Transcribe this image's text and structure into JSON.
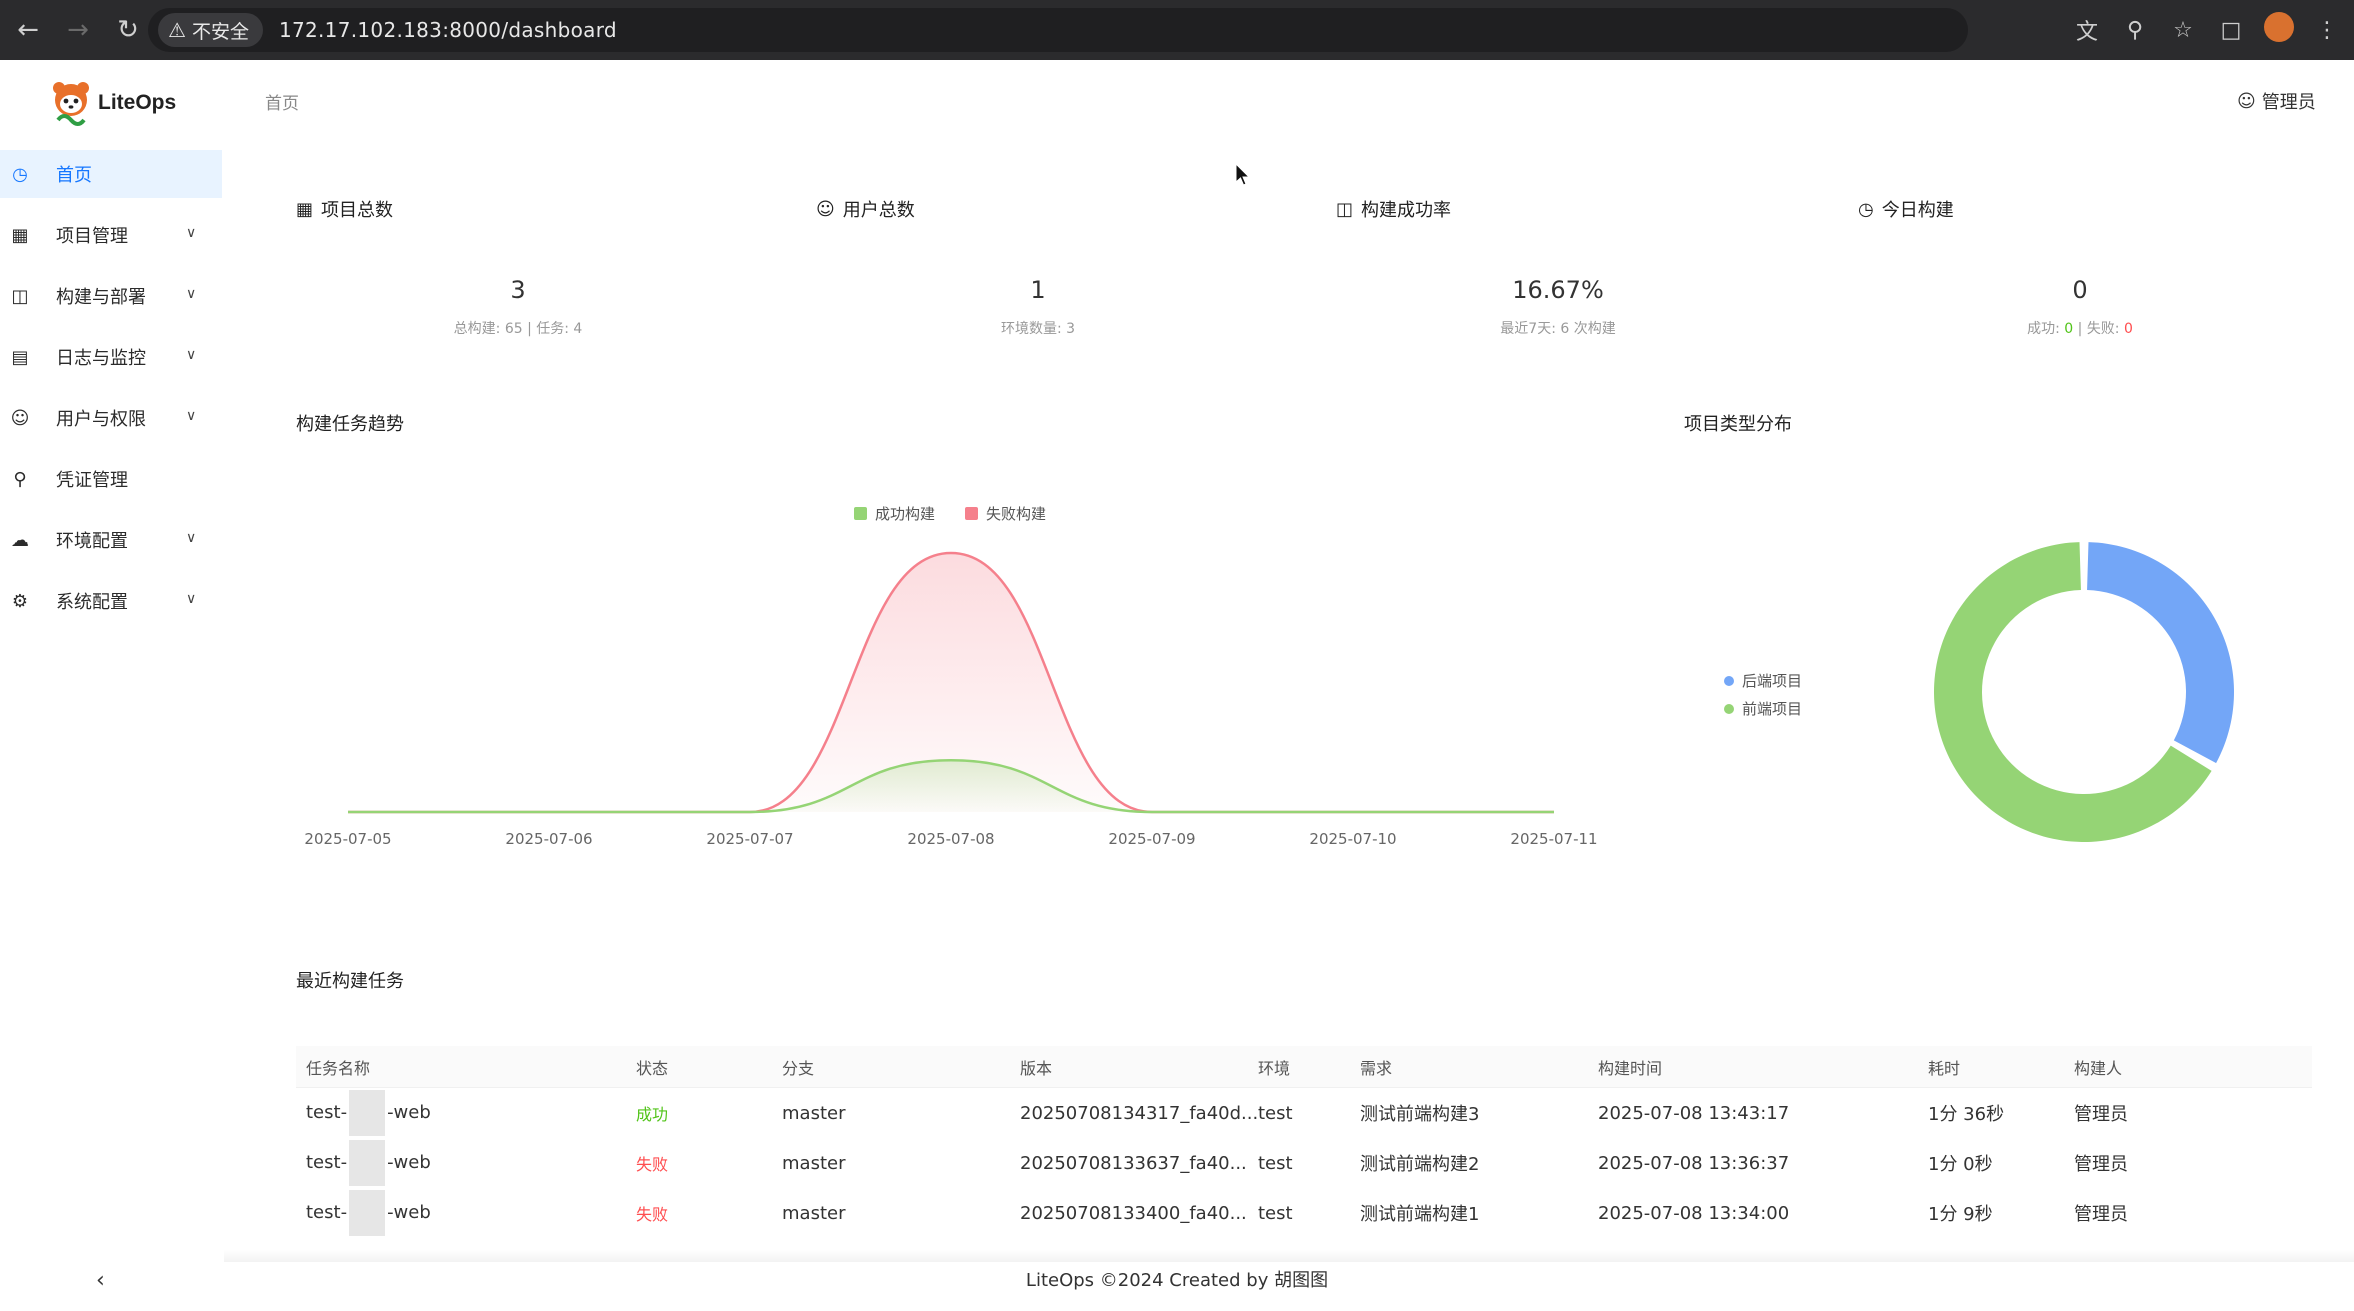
{
  "browser": {
    "security_label": "不安全",
    "url": "172.17.102.183:8000/dashboard"
  },
  "app": {
    "logo_text": "LiteOps"
  },
  "sidebar": {
    "items": [
      {
        "label": "首页",
        "icon": "dashboard-icon",
        "active": true,
        "expandable": false
      },
      {
        "label": "项目管理",
        "icon": "project-icon",
        "active": false,
        "expandable": true
      },
      {
        "label": "构建与部署",
        "icon": "build-icon",
        "active": false,
        "expandable": true
      },
      {
        "label": "日志与监控",
        "icon": "log-icon",
        "active": false,
        "expandable": true
      },
      {
        "label": "用户与权限",
        "icon": "user-icon",
        "active": false,
        "expandable": true
      },
      {
        "label": "凭证管理",
        "icon": "key-icon",
        "active": false,
        "expandable": false
      },
      {
        "label": "环境配置",
        "icon": "cloud-icon",
        "active": false,
        "expandable": true
      },
      {
        "label": "系统配置",
        "icon": "gear-icon",
        "active": false,
        "expandable": true
      }
    ]
  },
  "header": {
    "breadcrumb": "首页",
    "user": "管理员"
  },
  "stats": {
    "projects": {
      "label": "项目总数",
      "value": "3",
      "sub": "总构建: 65 | 任务: 4"
    },
    "users": {
      "label": "用户总数",
      "value": "1",
      "sub": "环境数量: 3"
    },
    "success_rate": {
      "label": "构建成功率",
      "value": "16.67%",
      "sub": "最近7天: 6 次构建"
    },
    "today": {
      "label": "今日构建",
      "value": "0",
      "sub_success_label": "成功:",
      "sub_success_value": "0",
      "sub_sep": "|",
      "sub_fail_label": "失败:",
      "sub_fail_value": "0"
    }
  },
  "trend": {
    "title": "构建任务趋势"
  },
  "distribution": {
    "title": "项目类型分布"
  },
  "chart_data": [
    {
      "type": "area",
      "title": "构建任务趋势",
      "categories": [
        "2025-07-05",
        "2025-07-06",
        "2025-07-07",
        "2025-07-08",
        "2025-07-09",
        "2025-07-10",
        "2025-07-11"
      ],
      "series": [
        {
          "name": "成功构建",
          "values": [
            0,
            0,
            0,
            1,
            0,
            0,
            0
          ],
          "color": "#95d475"
        },
        {
          "name": "失败构建",
          "values": [
            0,
            0,
            0,
            5,
            0,
            0,
            0
          ],
          "color": "#f5808c"
        }
      ],
      "ylim": [
        0,
        5
      ],
      "legend": "top-center",
      "grid": false
    },
    {
      "type": "pie",
      "title": "项目类型分布",
      "labels": [
        "后端项目",
        "前端项目"
      ],
      "values": [
        1,
        2
      ],
      "colors": [
        "#73a6f7",
        "#95d475"
      ],
      "donut": true,
      "legend": "left"
    }
  ],
  "recent": {
    "title": "最近构建任务",
    "columns": [
      "任务名称",
      "状态",
      "分支",
      "版本",
      "环境",
      "需求",
      "构建时间",
      "耗时",
      "构建人"
    ],
    "rows": [
      {
        "name_prefix": "test-",
        "name_suffix": "-web",
        "status": "成功",
        "status_type": "ok",
        "branch": "master",
        "version": "20250708134317_fa40d...",
        "env": "test",
        "requirement": "测试前端构建3",
        "time": "2025-07-08 13:43:17",
        "duration": "1分 36秒",
        "builder": "管理员"
      },
      {
        "name_prefix": "test-",
        "name_suffix": "-web",
        "status": "失败",
        "status_type": "bad",
        "branch": "master",
        "version": "20250708133637_fa40...",
        "env": "test",
        "requirement": "测试前端构建2",
        "time": "2025-07-08 13:36:37",
        "duration": "1分 0秒",
        "builder": "管理员"
      },
      {
        "name_prefix": "test-",
        "name_suffix": "-web",
        "status": "失败",
        "status_type": "bad",
        "branch": "master",
        "version": "20250708133400_fa40...",
        "env": "test",
        "requirement": "测试前端构建1",
        "time": "2025-07-08 13:34:00",
        "duration": "1分 9秒",
        "builder": "管理员"
      }
    ]
  },
  "footer": "LiteOps ©2024 Created by 胡图图"
}
